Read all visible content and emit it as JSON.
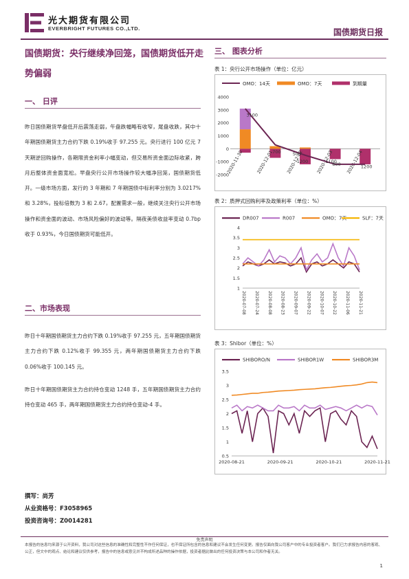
{
  "header": {
    "company_cn": "光大期货有限公司",
    "company_en": "EVERBRIGHT FUTURES CO.,LTD.",
    "report_name": "国债期货日报"
  },
  "title": "国债期货：央行继续净回笼，国债期货低开走势偏弱",
  "section1": {
    "heading": "一、  日评"
  },
  "daily_review": "昨日国债期货早盘低开后震荡走弱，午盘跌幅略有收窄，尾盘收跌，其中十年期国债期货主力合约下跌 0.19%收于 97.255 元。央行进行 100 亿元 7 天期逆回购操作，各期限资金利率小幅变动，但交易所资金面边际收紧，跨月后整体资金面宽松。早盘央行公开市场操作较大幅净回笼，国债期货低开。一级市场方面，发行的 3 年期和 7 年期国债中标利率分别为 3.0217%和 3.28%，投标倍数为 3 和 2.67，配置需求一般，继续关注央行公开市场操作和资金面的波动、市场风险偏好的波动等。隔夜美债收益率变动 0.7bp 收于 0.93%，今日国债期货可能低开。",
  "section2": {
    "heading": "二、市场表现"
  },
  "market_p1": "昨日十年期国债期货主力合约下跌 0.19%收于 97.255 元，五年期国债期货主力合约下跌 0.12%收于 99.355 元，两年期国债期货主力合约下跌 0.06%收于 100.145 元。",
  "market_p2": "昨日十年期国债期货主力合约持仓变动 1248 手，五年期国债期货主力合约持仓变动 465 手，两年期国债期货主力合约持仓变动-4 手。",
  "section3": {
    "heading": "三、  图表分析"
  },
  "signature": {
    "author": "撰写：尚芳",
    "license": "从业资格号：F3058965",
    "consult": "投资咨询号：Z0014281"
  },
  "disclaimer": {
    "title": "免责声明",
    "text": "本报告的信息均来源于公开资料，我公司对这些信息的准确性和完整性不作任何保证，也不保证所包含的信息和建议不会发生任何变更。报告仅面向我公司客户中的专业投资者客户。我们已力求报告内容的客观、公正，但文中的观点、结论和建议仅供参考，报告中的信息或意见并不构成所述品种的操作依据，投资者据此做出的任何投资决策与本公司和作者无关。"
  },
  "page_number": "1",
  "colors": {
    "brand": "#7a2e66",
    "accent_orange": "#f08a24"
  },
  "chart_data": [
    {
      "type": "bar",
      "caption": "表 1：央行公开市场操作（单位：亿元）",
      "categories": [
        "2020-11-30",
        "2020-12-01",
        "2020-12-02",
        "2020-12-03",
        "2020-12-04"
      ],
      "series": [
        {
          "name": "OMO：14天",
          "type": "line",
          "color": "#6b2452",
          "values": [
            3100,
            300,
            -500,
            -1200,
            -1200
          ]
        },
        {
          "name": "OMO：7天",
          "type": "bar",
          "color": "#f08a24",
          "values": [
            1500,
            200,
            100,
            0,
            0
          ]
        },
        {
          "name": "到期量",
          "type": "bar",
          "color": "#b0306b",
          "values": [
            -300,
            -700,
            -1200,
            -800,
            -1200
          ]
        }
      ],
      "stack_extra": {
        "name": "OMO：14天",
        "color": "#b978c8",
        "values": [
          1600,
          0,
          0,
          0,
          0
        ]
      },
      "data_labels": [
        "3100",
        "700",
        "500",
        "1200",
        "1100",
        "800",
        "1200"
      ],
      "yticks": [
        "4000",
        "3000",
        "2000",
        "1000",
        "0",
        "-1000",
        "-2000"
      ],
      "ylim": [
        -2000,
        4000
      ]
    },
    {
      "type": "line",
      "caption": "表 2：质押式回购利率及政策利率（单位：%）",
      "x_ticks": [
        "2020-07-08",
        "2020-07-24",
        "2020-08-08",
        "2020-08-23",
        "2020-09-07",
        "2020-09-22",
        "2020-10-07",
        "2020-10-22",
        "2020-11-06",
        "2020-11-21"
      ],
      "yticks": [
        "4",
        "3.5",
        "3",
        "2.5",
        "2",
        "1.5",
        "1"
      ],
      "ylim": [
        1,
        4
      ],
      "series": [
        {
          "name": "DR007",
          "color": "#6b2452",
          "values": [
            2.1,
            2.3,
            2.2,
            2.1,
            2.2,
            2.4,
            2.2,
            2.3,
            2.25,
            2.1,
            2.2,
            2.5,
            1.8,
            2.2,
            2.3,
            2.1,
            2.2,
            2.4,
            2.2,
            2.0,
            2.3,
            2.2,
            1.8
          ]
        },
        {
          "name": "R007",
          "color": "#b978c8",
          "values": [
            2.2,
            2.5,
            2.3,
            2.1,
            2.4,
            2.9,
            2.3,
            2.6,
            2.5,
            2.2,
            2.5,
            3.0,
            1.9,
            2.4,
            2.7,
            2.3,
            2.5,
            3.2,
            2.5,
            2.1,
            3.0,
            2.6,
            1.9
          ]
        },
        {
          "name": "OMO：7天",
          "color": "#f08a24",
          "values": [
            2.2,
            2.2,
            2.2,
            2.2,
            2.2,
            2.2,
            2.2,
            2.2,
            2.2,
            2.2,
            2.2,
            2.2,
            2.2,
            2.2,
            2.2,
            2.2,
            2.2,
            2.2,
            2.2,
            2.2,
            2.2,
            2.2,
            2.2
          ]
        },
        {
          "name": "SLF：7天",
          "color": "#f5b400",
          "values": [
            3.4,
            3.4,
            3.4,
            3.4,
            3.4,
            3.4,
            3.4,
            3.4,
            3.4,
            3.4,
            3.4,
            3.4,
            3.4,
            3.4,
            3.4,
            3.4,
            3.4,
            3.4,
            3.4,
            3.4,
            3.4,
            3.4,
            3.4
          ]
        }
      ]
    },
    {
      "type": "line",
      "caption": "表 3：Shibor（单位：%）",
      "x_ticks": [
        "2020-08-21",
        "2020-09-21",
        "2020-10-21",
        "2020-11-21"
      ],
      "yticks": [
        "3.5",
        "3",
        "2.5",
        "2",
        "1.5",
        "1",
        "0.5"
      ],
      "ylim": [
        0.5,
        3.5
      ],
      "series": [
        {
          "name": "SHIBORO/N",
          "color": "#6b2452",
          "values": [
            2.0,
            2.1,
            1.3,
            2.1,
            1.0,
            2.0,
            2.2,
            1.9,
            0.6,
            2.1,
            2.0,
            1.6,
            2.0,
            1.3,
            2.1,
            1.9,
            2.1,
            2.2,
            1.0,
            2.0,
            2.1,
            1.8,
            1.6,
            2.1,
            1.9,
            1.0,
            0.8,
            1.2,
            0.75
          ]
        },
        {
          "name": "SHIBOR1W",
          "color": "#b978c8",
          "values": [
            2.2,
            2.3,
            2.1,
            2.25,
            2.2,
            2.3,
            2.2,
            2.1,
            2.1,
            2.3,
            2.2,
            2.2,
            2.25,
            2.1,
            2.3,
            2.2,
            2.2,
            2.3,
            2.15,
            2.2,
            2.25,
            2.2,
            2.1,
            2.2,
            2.3,
            2.2,
            2.3,
            2.25,
            1.95
          ]
        },
        {
          "name": "SHIBOR3M",
          "color": "#f08a24",
          "values": [
            2.65,
            2.66,
            2.68,
            2.7,
            2.72,
            2.72,
            2.75,
            2.76,
            2.78,
            2.8,
            2.81,
            2.82,
            2.83,
            2.85,
            2.86,
            2.87,
            2.88,
            2.9,
            2.92,
            2.93,
            2.95,
            2.97,
            2.99,
            3.0,
            3.02,
            3.05,
            3.1,
            3.12,
            3.1
          ]
        }
      ]
    }
  ]
}
